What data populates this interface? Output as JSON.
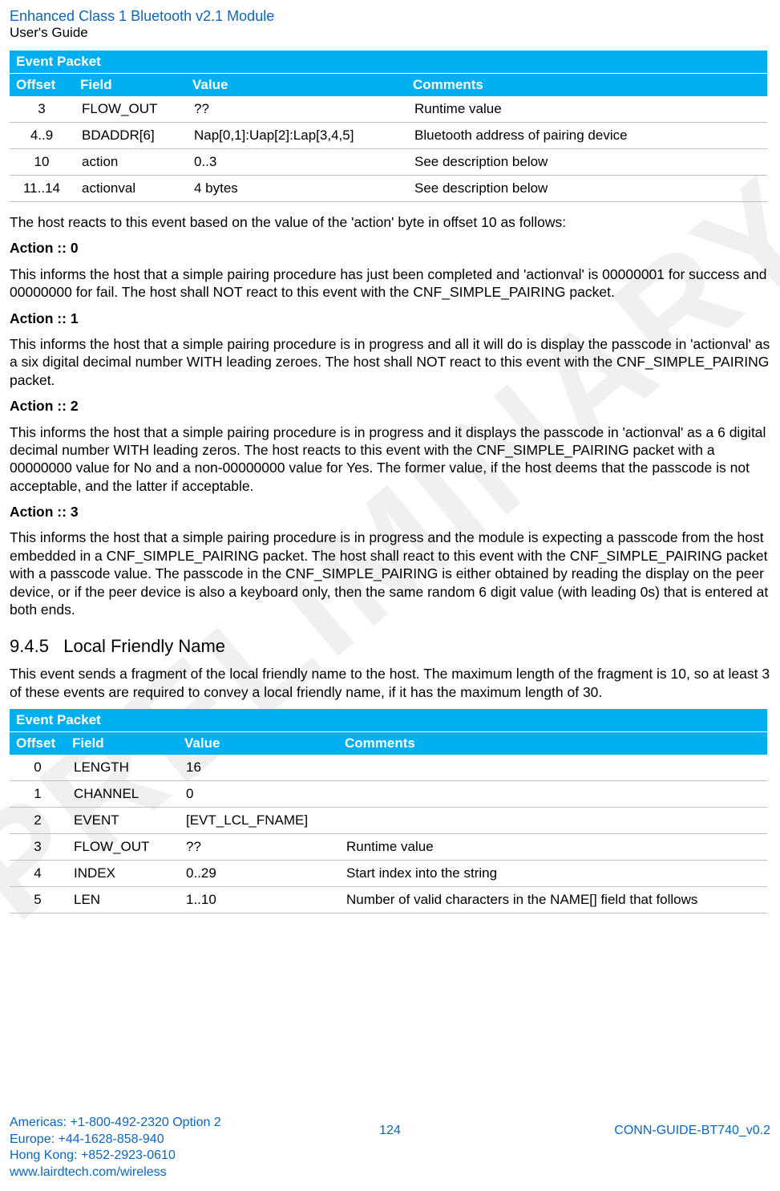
{
  "header": {
    "title": "Enhanced Class 1 Bluetooth v2.1 Module",
    "subtitle": "User's Guide"
  },
  "watermark_text": "PRELIMINARY",
  "table1": {
    "title": "Event Packet",
    "columns": [
      "Offset",
      "Field",
      "Value",
      "Comments"
    ],
    "col_widths": [
      "80px",
      "140px",
      "275px",
      "auto"
    ],
    "rows": [
      [
        "3",
        "FLOW_OUT",
        "??",
        "Runtime value"
      ],
      [
        "4..9",
        "BDADDR[6]",
        "Nap[0,1]:Uap[2]:Lap[3,4,5]",
        "Bluetooth address of pairing  device"
      ],
      [
        "10",
        "action",
        "0..3",
        "See description below"
      ],
      [
        "11..14",
        "actionval",
        "4 bytes",
        "See description below"
      ]
    ]
  },
  "body": {
    "intro": "The host reacts to this event based on the value of the 'action' byte in offset 10 as follows:",
    "a0_title": "Action :: 0",
    "a0_text": "This informs the host that a simple pairing procedure has just been completed and 'actionval' is 00000001 for success and 00000000 for fail. The host shall NOT react to this event with the CNF_SIMPLE_PAIRING packet.",
    "a1_title": "Action :: 1",
    "a1_text": "This informs the host that a simple pairing procedure is in progress and all it will do is display the passcode in 'actionval' as a six digital decimal number WITH leading zeroes. The host shall NOT react to this event with the CNF_SIMPLE_PAIRING packet.",
    "a2_title": "Action :: 2",
    "a2_text": "This informs the host that a simple pairing procedure is in progress and it displays the passcode in 'actionval' as a 6 digital decimal number WITH leading zeros. The host reacts to this event with the CNF_SIMPLE_PAIRING packet with a 00000000 value for No and a non-00000000 value for Yes. The former value, if the host deems that the passcode is not acceptable, and the latter if acceptable.",
    "a3_title": "Action :: 3",
    "a3_text": "This informs the host that a simple pairing procedure is in progress and the module is expecting a passcode from the host embedded in a CNF_SIMPLE_PAIRING packet. The host shall react to this event with the CNF_SIMPLE_PAIRING packet with a passcode value. The passcode in the CNF_SIMPLE_PAIRING is either obtained by reading the display on the peer device, or if the peer device is also a keyboard only, then the same random 6 digit value (with leading 0s) that is entered at both ends."
  },
  "section": {
    "number": "9.4.5",
    "title": "Local Friendly Name",
    "intro": "This event sends a fragment of the local friendly name to the host. The maximum length of the fragment is 10, so at least 3 of these events are required to convey a local friendly name, if it has the maximum length of 30."
  },
  "table2": {
    "title": "Event Packet",
    "columns": [
      "Offset",
      "Field",
      "Value",
      "Comments"
    ],
    "col_widths": [
      "70px",
      "140px",
      "200px",
      "auto"
    ],
    "rows": [
      [
        "0",
        "LENGTH",
        "16",
        ""
      ],
      [
        "1",
        "CHANNEL",
        "0",
        ""
      ],
      [
        "2",
        "EVENT",
        "[EVT_LCL_FNAME]",
        ""
      ],
      [
        "3",
        "FLOW_OUT",
        "??",
        "Runtime value"
      ],
      [
        "4",
        "INDEX",
        "0..29",
        "Start index into the string"
      ],
      [
        "5",
        "LEN",
        "1..10",
        "Number of valid characters in the NAME[] field that follows"
      ]
    ]
  },
  "footer": {
    "lines": [
      "Americas: +1-800-492-2320 Option 2",
      "Europe: +44-1628-858-940",
      "Hong Kong: +852-2923-0610",
      "www.lairdtech.com/wireless"
    ],
    "page_number": "124",
    "doc_id": "CONN-GUIDE-BT740_v0.2"
  },
  "colors": {
    "link_blue": "#0a66c2",
    "table_header_bg": "#00aff0",
    "row_border": "#bfbfbf",
    "watermark": "rgba(0,0,0,0.06)"
  }
}
